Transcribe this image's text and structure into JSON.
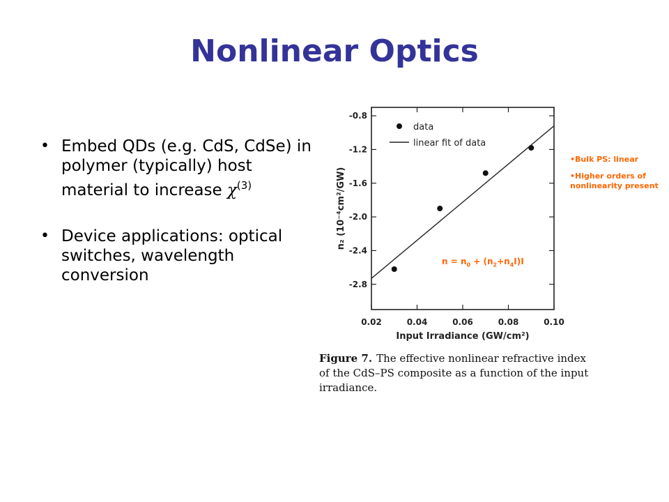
{
  "slide": {
    "title": "Nonlinear Optics",
    "bullets": [
      {
        "text": "Embed QDs (e.g. CdS, CdSe) in polymer (typically) host material to increase ",
        "symbol": "χ",
        "superscript": "(3)"
      },
      {
        "text": "Device applications: optical switches, wavelength conversion"
      }
    ],
    "side_notes": [
      "•Bulk PS: linear",
      "•Higher orders of nonlinearity present"
    ],
    "formula": {
      "n": "n = n",
      "s0": "0",
      "mid": " + (n",
      "s2": "2",
      "plus": "+n",
      "s4": "4",
      "tail": "I)I"
    },
    "caption": {
      "label": "Figure 7.",
      "text": "The effective nonlinear refractive index of the CdS–PS composite as a function of the input irradiance."
    }
  },
  "chart_data": {
    "type": "scatter",
    "xlabel": "Input Irradiance (GW/cm²)",
    "ylabel": "n₂ (10⁻⁴cm²/GW)",
    "xlim": [
      0.02,
      0.1
    ],
    "ylim": [
      -3.1,
      -0.7
    ],
    "xticks": [
      "0.02",
      "0.04",
      "0.06",
      "0.08",
      "0.10"
    ],
    "yticks": [
      "-0.8",
      "-1.2",
      "-1.6",
      "-2.0",
      "-2.4",
      "-2.8"
    ],
    "legend": [
      "data",
      "linear fit of data"
    ],
    "legend_position": "top-left",
    "grid": false,
    "series": [
      {
        "name": "data",
        "kind": "points",
        "x": [
          0.03,
          0.05,
          0.07,
          0.09
        ],
        "y": [
          -2.62,
          -1.9,
          -1.48,
          -1.18
        ]
      },
      {
        "name": "linear fit of data",
        "kind": "line",
        "x": [
          0.02,
          0.1
        ],
        "y": [
          -2.73,
          -0.92
        ]
      }
    ]
  }
}
